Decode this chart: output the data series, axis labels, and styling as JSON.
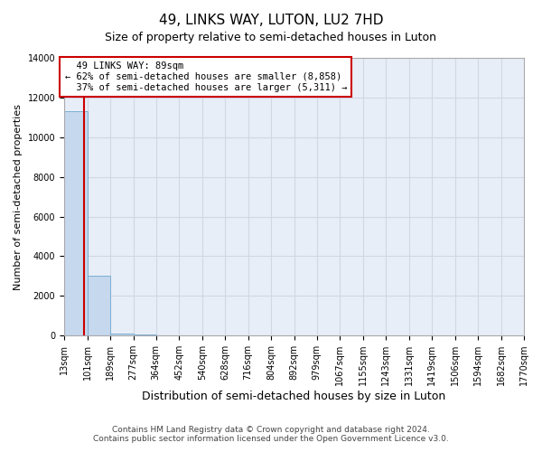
{
  "title": "49, LINKS WAY, LUTON, LU2 7HD",
  "subtitle": "Size of property relative to semi-detached houses in Luton",
  "xlabel": "Distribution of semi-detached houses by size in Luton",
  "ylabel": "Number of semi-detached properties",
  "bar_edges": [
    13,
    101,
    189,
    277,
    364,
    452,
    540,
    628,
    716,
    804,
    892,
    979,
    1067,
    1155,
    1243,
    1331,
    1419,
    1506,
    1594,
    1682,
    1770
  ],
  "bar_heights": [
    11300,
    3000,
    120,
    60,
    30,
    20,
    15,
    12,
    10,
    8,
    6,
    5,
    4,
    3,
    3,
    2,
    2,
    2,
    1,
    1
  ],
  "bar_color": "#c5d8ee",
  "bar_edge_color": "#7aafd4",
  "property_size": 89,
  "property_label": "49 LINKS WAY: 89sqm",
  "smaller_pct": 62,
  "smaller_count": 8858,
  "larger_pct": 37,
  "larger_count": 5311,
  "annotation_box_color": "#cc0000",
  "vline_color": "#cc0000",
  "ylim": [
    0,
    14000
  ],
  "yticks": [
    0,
    2000,
    4000,
    6000,
    8000,
    10000,
    12000,
    14000
  ],
  "xtick_labels": [
    "13sqm",
    "101sqm",
    "189sqm",
    "277sqm",
    "364sqm",
    "452sqm",
    "540sqm",
    "628sqm",
    "716sqm",
    "804sqm",
    "892sqm",
    "979sqm",
    "1067sqm",
    "1155sqm",
    "1243sqm",
    "1331sqm",
    "1419sqm",
    "1506sqm",
    "1594sqm",
    "1682sqm",
    "1770sqm"
  ],
  "grid_color": "#d0d8e4",
  "bg_color": "#e8eef8",
  "footer_line1": "Contains HM Land Registry data © Crown copyright and database right 2024.",
  "footer_line2": "Contains public sector information licensed under the Open Government Licence v3.0.",
  "title_fontsize": 11,
  "subtitle_fontsize": 9,
  "tick_fontsize": 7,
  "ylabel_fontsize": 8,
  "xlabel_fontsize": 9,
  "footer_fontsize": 6.5,
  "ann_fontsize": 7.5
}
